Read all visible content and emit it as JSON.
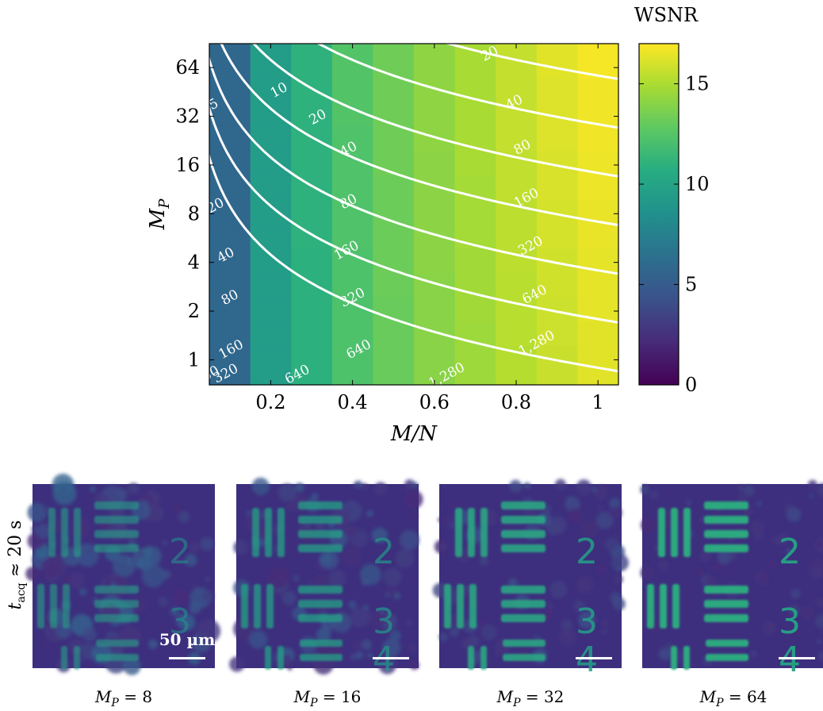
{
  "chart_data": {
    "type": "heatmap",
    "xlabel": "M/N",
    "ylabel": "M_P",
    "x_ticks": [
      "0.2",
      "0.4",
      "0.6",
      "0.8",
      "1"
    ],
    "y_ticks": [
      "1",
      "2",
      "4",
      "8",
      "16",
      "32",
      "64"
    ],
    "x_tick_values": [
      0.2,
      0.4,
      0.6,
      0.8,
      1.0
    ],
    "y_tick_values": [
      1,
      2,
      4,
      8,
      16,
      32,
      64
    ],
    "xlim": [
      0.05,
      1.05
    ],
    "ylim": [
      0.7,
      90
    ],
    "y_scale": "log2",
    "x": [
      0.1,
      0.2,
      0.3,
      0.4,
      0.5,
      0.6,
      0.7,
      0.8,
      0.9,
      1.0
    ],
    "y": [
      0.75,
      1,
      1.5,
      2,
      3,
      4,
      6,
      8,
      12,
      16,
      24,
      32,
      48,
      64,
      80
    ],
    "values": [
      [
        5.8,
        9.4,
        10.9,
        12.2,
        13.1,
        14.0,
        14.6,
        15.2,
        15.7,
        16.3
      ],
      [
        5.8,
        9.4,
        10.9,
        12.2,
        13.1,
        14.0,
        14.6,
        15.2,
        15.7,
        16.3
      ],
      [
        5.8,
        9.4,
        10.9,
        12.2,
        13.1,
        14.0,
        14.6,
        15.3,
        15.8,
        16.3
      ],
      [
        5.8,
        9.4,
        10.9,
        12.2,
        13.1,
        14.0,
        14.7,
        15.3,
        15.8,
        16.4
      ],
      [
        5.8,
        9.4,
        10.9,
        12.2,
        13.2,
        14.0,
        14.7,
        15.3,
        15.9,
        16.4
      ],
      [
        5.8,
        9.4,
        10.9,
        12.2,
        13.2,
        14.1,
        14.7,
        15.4,
        15.9,
        16.4
      ],
      [
        5.8,
        9.4,
        11.0,
        12.3,
        13.2,
        14.1,
        14.8,
        15.4,
        16.0,
        16.5
      ],
      [
        5.8,
        9.4,
        11.0,
        12.3,
        13.2,
        14.1,
        14.8,
        15.4,
        16.0,
        16.5
      ],
      [
        5.8,
        9.4,
        11.0,
        12.3,
        13.2,
        14.1,
        14.8,
        15.5,
        16.1,
        16.6
      ],
      [
        5.8,
        9.4,
        11.0,
        12.3,
        13.3,
        14.1,
        14.9,
        15.5,
        16.1,
        16.6
      ],
      [
        5.8,
        9.4,
        11.0,
        12.3,
        13.3,
        14.2,
        14.9,
        15.6,
        16.2,
        16.7
      ],
      [
        5.8,
        9.4,
        11.0,
        12.4,
        13.3,
        14.2,
        14.9,
        15.6,
        16.2,
        16.7
      ],
      [
        5.8,
        9.4,
        11.0,
        12.4,
        13.3,
        14.2,
        14.9,
        15.6,
        16.2,
        16.7
      ],
      [
        5.8,
        9.4,
        11.0,
        12.4,
        13.3,
        14.2,
        14.9,
        15.6,
        16.3,
        16.8
      ],
      [
        5.8,
        9.4,
        11.0,
        12.4,
        13.3,
        14.2,
        14.9,
        15.6,
        16.3,
        16.8
      ]
    ],
    "colorbar": {
      "title": "WSNR",
      "ticks": [
        "0",
        "5",
        "10",
        "15"
      ],
      "tick_values": [
        0,
        5,
        10,
        15
      ],
      "range": [
        0,
        17
      ],
      "colormap": "viridis"
    },
    "contours": {
      "color": "#ffffff",
      "formula": "t_acq = 5.6 * M_P * M/N",
      "levels": [
        5,
        10,
        20,
        40,
        80,
        160,
        320,
        640,
        1280
      ],
      "labels": [
        {
          "text": "5",
          "x": 0.065,
          "y": 36
        },
        {
          "text": "10",
          "x": 0.225,
          "y": 44
        },
        {
          "text": "20",
          "x": 0.07,
          "y": 8.5
        },
        {
          "text": "20",
          "x": 0.32,
          "y": 30
        },
        {
          "text": "20",
          "x": 0.74,
          "y": 74
        },
        {
          "text": "40",
          "x": 0.095,
          "y": 4.2
        },
        {
          "text": "40",
          "x": 0.395,
          "y": 19
        },
        {
          "text": "40",
          "x": 0.8,
          "y": 37
        },
        {
          "text": "80",
          "x": 0.105,
          "y": 2.3
        },
        {
          "text": "80",
          "x": 0.395,
          "y": 9
        },
        {
          "text": "80",
          "x": 0.82,
          "y": 19.5
        },
        {
          "text": "160",
          "x": 0.108,
          "y": 1.1
        },
        {
          "text": "160",
          "x": 0.39,
          "y": 4.5
        },
        {
          "text": "160",
          "x": 0.83,
          "y": 9.5
        },
        {
          "text": "320",
          "x": 0.095,
          "y": 0.78
        },
        {
          "text": "320",
          "x": 0.405,
          "y": 2.3
        },
        {
          "text": "320",
          "x": 0.84,
          "y": 4.8
        },
        {
          "text": "640",
          "x": 0.27,
          "y": 0.77
        },
        {
          "text": "640",
          "x": 0.42,
          "y": 1.1
        },
        {
          "text": "640",
          "x": 0.85,
          "y": 2.4
        },
        {
          "text": "1,280",
          "x": 0.635,
          "y": 0.76
        },
        {
          "text": "1,280",
          "x": 0.855,
          "y": 1.2
        },
        {
          "text": "60",
          "x": 0.058,
          "y": 0.78
        }
      ]
    }
  },
  "panels": {
    "row_label": "t_acq ≈ 20 s",
    "scale_bar_label": "50 µm",
    "items": [
      {
        "caption": "M_P = 8",
        "quality": 0.15
      },
      {
        "caption": "M_P = 16",
        "quality": 0.4
      },
      {
        "caption": "M_P = 32",
        "quality": 0.7
      },
      {
        "caption": "M_P = 64",
        "quality": 0.9
      }
    ],
    "digits": [
      "2",
      "3",
      "4"
    ]
  }
}
